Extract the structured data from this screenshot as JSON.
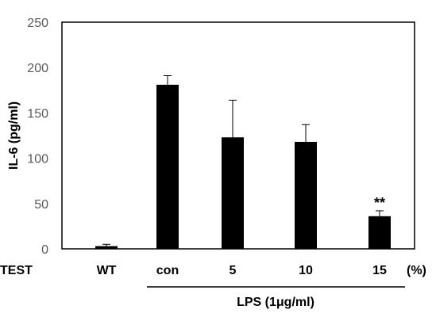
{
  "chart_data": {
    "type": "bar",
    "categories": [
      "WT",
      "con",
      "5",
      "10",
      "15"
    ],
    "values": [
      3,
      181,
      123,
      118,
      36
    ],
    "errors": [
      2,
      10,
      41,
      19,
      6
    ],
    "annotations": [
      "",
      "",
      "",
      "",
      "**"
    ],
    "ylabel": "IL-6 (pg/ml)",
    "xlabel_left": "TEST",
    "xlabel_right": "(%)",
    "group_label": "LPS (1μg/ml)",
    "ylim": [
      0,
      250
    ],
    "yticks": [
      0,
      50,
      100,
      150,
      200,
      250
    ],
    "bar_color": "#000000",
    "grid": false
  }
}
